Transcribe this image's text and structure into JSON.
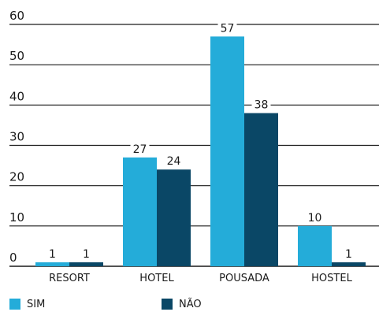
{
  "chart_data": {
    "type": "bar",
    "categories": [
      "RESORT",
      "HOTEL",
      "POUSADA",
      "HOSTEL"
    ],
    "series": [
      {
        "name": "SIM",
        "values": [
          1,
          27,
          57,
          10
        ],
        "color": "#24acd9"
      },
      {
        "name": "NÃO",
        "values": [
          1,
          24,
          38,
          1
        ],
        "color": "#0a4766"
      }
    ],
    "data_labels": [
      [
        "1",
        "27",
        "57",
        "10"
      ],
      [
        "1",
        "24",
        "38",
        "1"
      ]
    ],
    "yticks": [
      0,
      10,
      20,
      30,
      40,
      50,
      60
    ],
    "ytick_labels": [
      "0",
      "10",
      "20",
      "30",
      "40",
      "50",
      "60"
    ],
    "ylim": [
      0,
      60
    ],
    "grid": true,
    "legend_position": "bottom-left",
    "title": "",
    "xlabel": "",
    "ylabel": ""
  }
}
